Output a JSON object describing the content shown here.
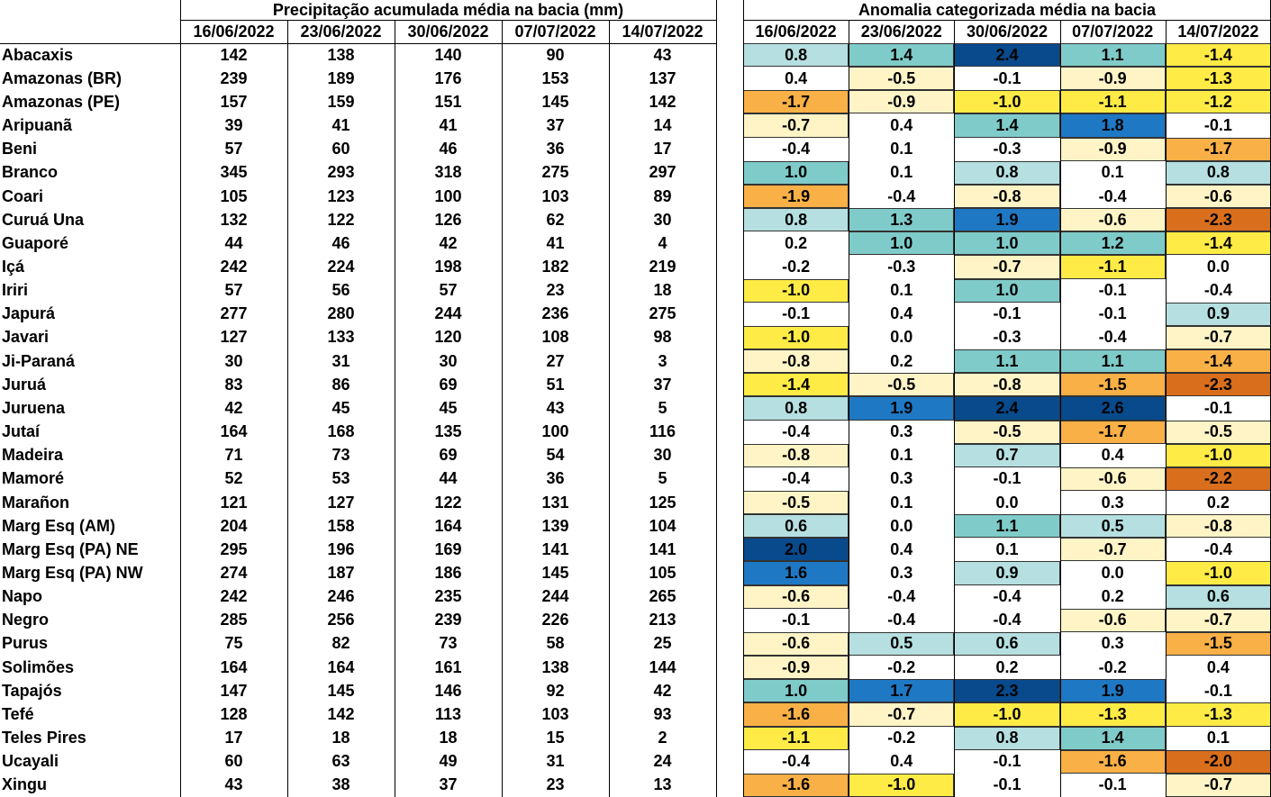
{
  "left_table": {
    "title": "Precipitação acumulada média na bacia (mm)",
    "dates": [
      "16/06/2022",
      "23/06/2022",
      "30/06/2022",
      "07/07/2022",
      "14/07/2022"
    ]
  },
  "right_table": {
    "title": "Anomalia categorizada média na bacia",
    "dates": [
      "16/06/2022",
      "23/06/2022",
      "30/06/2022",
      "07/07/2022",
      "14/07/2022"
    ]
  },
  "rows": [
    {
      "name": "Abacaxis",
      "precipitation": [
        142,
        138,
        140,
        90,
        43
      ],
      "anomaly": [
        "0.8",
        "1.4",
        "2.4",
        "1.1",
        "-1.4"
      ],
      "colors": [
        "#b5dfe0",
        "#7fcbc9",
        "#084a8c",
        "#7fcbc9",
        "#ffeb45"
      ]
    },
    {
      "name": "Amazonas (BR)",
      "precipitation": [
        239,
        189,
        176,
        153,
        137
      ],
      "anomaly": [
        "0.4",
        "-0.5",
        "-0.1",
        "-0.9",
        "-1.3"
      ],
      "colors": [
        "#ffffff",
        "#fff4c6",
        "#ffffff",
        "#fff4c6",
        "#ffeb45"
      ]
    },
    {
      "name": "Amazonas (PE)",
      "precipitation": [
        157,
        159,
        151,
        145,
        142
      ],
      "anomaly": [
        "-1.7",
        "-0.9",
        "-1.0",
        "-1.1",
        "-1.2"
      ],
      "colors": [
        "#f9b046",
        "#fff4c6",
        "#ffeb45",
        "#ffeb45",
        "#ffeb45"
      ]
    },
    {
      "name": "Aripuanã",
      "precipitation": [
        39,
        41,
        41,
        37,
        14
      ],
      "anomaly": [
        "-0.7",
        "0.4",
        "1.4",
        "1.8",
        "-0.1"
      ],
      "colors": [
        "#fff4c6",
        "#ffffff",
        "#7fcbc9",
        "#1f78c4",
        "#ffffff"
      ]
    },
    {
      "name": "Beni",
      "precipitation": [
        57,
        60,
        46,
        36,
        17
      ],
      "anomaly": [
        "-0.4",
        "0.1",
        "-0.3",
        "-0.9",
        "-1.7"
      ],
      "colors": [
        "#ffffff",
        "#ffffff",
        "#ffffff",
        "#fff4c6",
        "#f9b046"
      ]
    },
    {
      "name": "Branco",
      "precipitation": [
        345,
        293,
        318,
        275,
        297
      ],
      "anomaly": [
        "1.0",
        "0.1",
        "0.8",
        "0.1",
        "0.8"
      ],
      "colors": [
        "#7fcbc9",
        "#ffffff",
        "#b5dfe0",
        "#ffffff",
        "#b5dfe0"
      ]
    },
    {
      "name": "Coari",
      "precipitation": [
        105,
        123,
        100,
        103,
        89
      ],
      "anomaly": [
        "-1.9",
        "-0.4",
        "-0.8",
        "-0.4",
        "-0.6"
      ],
      "colors": [
        "#f9b046",
        "#ffffff",
        "#fff4c6",
        "#ffffff",
        "#fff4c6"
      ]
    },
    {
      "name": "Curuá Una",
      "precipitation": [
        132,
        122,
        126,
        62,
        30
      ],
      "anomaly": [
        "0.8",
        "1.3",
        "1.9",
        "-0.6",
        "-2.3"
      ],
      "colors": [
        "#b5dfe0",
        "#7fcbc9",
        "#1f78c4",
        "#fff4c6",
        "#d96e1c"
      ]
    },
    {
      "name": "Guaporé",
      "precipitation": [
        44,
        46,
        42,
        41,
        4
      ],
      "anomaly": [
        "0.2",
        "1.0",
        "1.0",
        "1.2",
        "-1.4"
      ],
      "colors": [
        "#ffffff",
        "#7fcbc9",
        "#7fcbc9",
        "#7fcbc9",
        "#ffeb45"
      ]
    },
    {
      "name": "Içá",
      "precipitation": [
        242,
        224,
        198,
        182,
        219
      ],
      "anomaly": [
        "-0.2",
        "-0.3",
        "-0.7",
        "-1.1",
        "0.0"
      ],
      "colors": [
        "#ffffff",
        "#ffffff",
        "#fff4c6",
        "#ffeb45",
        "#ffffff"
      ]
    },
    {
      "name": "Iriri",
      "precipitation": [
        57,
        56,
        57,
        23,
        18
      ],
      "anomaly": [
        "-1.0",
        "0.1",
        "1.0",
        "-0.1",
        "-0.4"
      ],
      "colors": [
        "#ffeb45",
        "#ffffff",
        "#7fcbc9",
        "#ffffff",
        "#ffffff"
      ]
    },
    {
      "name": "Japurá",
      "precipitation": [
        277,
        280,
        244,
        236,
        275
      ],
      "anomaly": [
        "-0.1",
        "0.4",
        "-0.1",
        "-0.1",
        "0.9"
      ],
      "colors": [
        "#ffffff",
        "#ffffff",
        "#ffffff",
        "#ffffff",
        "#b5dfe0"
      ]
    },
    {
      "name": "Javari",
      "precipitation": [
        127,
        133,
        120,
        108,
        98
      ],
      "anomaly": [
        "-1.0",
        "0.0",
        "-0.3",
        "-0.4",
        "-0.7"
      ],
      "colors": [
        "#ffeb45",
        "#ffffff",
        "#ffffff",
        "#ffffff",
        "#fff4c6"
      ]
    },
    {
      "name": "Ji-Paraná",
      "precipitation": [
        30,
        31,
        30,
        27,
        3
      ],
      "anomaly": [
        "-0.8",
        "0.2",
        "1.1",
        "1.1",
        "-1.4"
      ],
      "colors": [
        "#fff4c6",
        "#ffffff",
        "#7fcbc9",
        "#7fcbc9",
        "#f9b046"
      ]
    },
    {
      "name": "Juruá",
      "precipitation": [
        83,
        86,
        69,
        51,
        37
      ],
      "anomaly": [
        "-1.4",
        "-0.5",
        "-0.8",
        "-1.5",
        "-2.3"
      ],
      "colors": [
        "#ffeb45",
        "#fff4c6",
        "#fff4c6",
        "#f9b046",
        "#d96e1c"
      ]
    },
    {
      "name": "Juruena",
      "precipitation": [
        42,
        45,
        45,
        43,
        5
      ],
      "anomaly": [
        "0.8",
        "1.9",
        "2.4",
        "2.6",
        "-0.1"
      ],
      "colors": [
        "#b5dfe0",
        "#1f78c4",
        "#084a8c",
        "#084a8c",
        "#ffffff"
      ]
    },
    {
      "name": "Jutaí",
      "precipitation": [
        164,
        168,
        135,
        100,
        116
      ],
      "anomaly": [
        "-0.4",
        "0.3",
        "-0.5",
        "-1.7",
        "-0.5"
      ],
      "colors": [
        "#ffffff",
        "#ffffff",
        "#fff4c6",
        "#f9b046",
        "#fff4c6"
      ]
    },
    {
      "name": "Madeira",
      "precipitation": [
        71,
        73,
        69,
        54,
        30
      ],
      "anomaly": [
        "-0.8",
        "0.1",
        "0.7",
        "0.4",
        "-1.0"
      ],
      "colors": [
        "#fff4c6",
        "#ffffff",
        "#b5dfe0",
        "#ffffff",
        "#ffeb45"
      ]
    },
    {
      "name": "Mamoré",
      "precipitation": [
        52,
        53,
        44,
        36,
        5
      ],
      "anomaly": [
        "-0.4",
        "0.3",
        "-0.1",
        "-0.6",
        "-2.2"
      ],
      "colors": [
        "#ffffff",
        "#ffffff",
        "#ffffff",
        "#fff4c6",
        "#d96e1c"
      ]
    },
    {
      "name": "Marañon",
      "precipitation": [
        121,
        127,
        122,
        131,
        125
      ],
      "anomaly": [
        "-0.5",
        "0.1",
        "0.0",
        "0.3",
        "0.2"
      ],
      "colors": [
        "#fff4c6",
        "#ffffff",
        "#ffffff",
        "#ffffff",
        "#ffffff"
      ]
    },
    {
      "name": "Marg Esq (AM)",
      "precipitation": [
        204,
        158,
        164,
        139,
        104
      ],
      "anomaly": [
        "0.6",
        "0.0",
        "1.1",
        "0.5",
        "-0.8"
      ],
      "colors": [
        "#b5dfe0",
        "#ffffff",
        "#7fcbc9",
        "#b5dfe0",
        "#fff4c6"
      ]
    },
    {
      "name": "Marg Esq (PA) NE",
      "precipitation": [
        295,
        196,
        169,
        141,
        141
      ],
      "anomaly": [
        "2.0",
        "0.4",
        "0.1",
        "-0.7",
        "-0.4"
      ],
      "colors": [
        "#084a8c",
        "#ffffff",
        "#ffffff",
        "#fff4c6",
        "#ffffff"
      ]
    },
    {
      "name": "Marg Esq (PA) NW",
      "precipitation": [
        274,
        187,
        186,
        145,
        105
      ],
      "anomaly": [
        "1.6",
        "0.3",
        "0.9",
        "0.0",
        "-1.0"
      ],
      "colors": [
        "#1f78c4",
        "#ffffff",
        "#b5dfe0",
        "#ffffff",
        "#ffeb45"
      ]
    },
    {
      "name": "Napo",
      "precipitation": [
        242,
        246,
        235,
        244,
        265
      ],
      "anomaly": [
        "-0.6",
        "-0.4",
        "-0.4",
        "0.2",
        "0.6"
      ],
      "colors": [
        "#fff4c6",
        "#ffffff",
        "#ffffff",
        "#ffffff",
        "#b5dfe0"
      ]
    },
    {
      "name": "Negro",
      "precipitation": [
        285,
        256,
        239,
        226,
        213
      ],
      "anomaly": [
        "-0.1",
        "-0.4",
        "-0.4",
        "-0.6",
        "-0.7"
      ],
      "colors": [
        "#ffffff",
        "#ffffff",
        "#ffffff",
        "#fff4c6",
        "#fff4c6"
      ]
    },
    {
      "name": "Purus",
      "precipitation": [
        75,
        82,
        73,
        58,
        25
      ],
      "anomaly": [
        "-0.6",
        "0.5",
        "0.6",
        "0.3",
        "-1.5"
      ],
      "colors": [
        "#fff4c6",
        "#b5dfe0",
        "#b5dfe0",
        "#ffffff",
        "#f9b046"
      ]
    },
    {
      "name": "Solimões",
      "precipitation": [
        164,
        164,
        161,
        138,
        144
      ],
      "anomaly": [
        "-0.9",
        "-0.2",
        "0.2",
        "-0.2",
        "0.4"
      ],
      "colors": [
        "#fff4c6",
        "#ffffff",
        "#ffffff",
        "#ffffff",
        "#ffffff"
      ]
    },
    {
      "name": "Tapajós",
      "precipitation": [
        147,
        145,
        146,
        92,
        42
      ],
      "anomaly": [
        "1.0",
        "1.7",
        "2.3",
        "1.9",
        "-0.1"
      ],
      "colors": [
        "#7fcbc9",
        "#1f78c4",
        "#084a8c",
        "#1f78c4",
        "#ffffff"
      ]
    },
    {
      "name": "Tefé",
      "precipitation": [
        128,
        142,
        113,
        103,
        93
      ],
      "anomaly": [
        "-1.6",
        "-0.7",
        "-1.0",
        "-1.3",
        "-1.3"
      ],
      "colors": [
        "#f9b046",
        "#fff4c6",
        "#ffeb45",
        "#ffeb45",
        "#ffeb45"
      ]
    },
    {
      "name": "Teles Pires",
      "precipitation": [
        17,
        18,
        18,
        15,
        2
      ],
      "anomaly": [
        "-1.1",
        "-0.2",
        "0.8",
        "1.4",
        "0.1"
      ],
      "colors": [
        "#ffeb45",
        "#ffffff",
        "#b5dfe0",
        "#7fcbc9",
        "#ffffff"
      ]
    },
    {
      "name": "Ucayali",
      "precipitation": [
        60,
        63,
        49,
        31,
        24
      ],
      "anomaly": [
        "-0.4",
        "0.4",
        "-0.1",
        "-1.6",
        "-2.0"
      ],
      "colors": [
        "#ffffff",
        "#ffffff",
        "#ffffff",
        "#f9b046",
        "#d96e1c"
      ]
    },
    {
      "name": "Xingu",
      "precipitation": [
        43,
        38,
        37,
        23,
        13
      ],
      "anomaly": [
        "-1.6",
        "-1.0",
        "-0.1",
        "-0.1",
        "-0.7"
      ],
      "colors": [
        "#f9b046",
        "#ffeb45",
        "#ffffff",
        "#ffffff",
        "#fff4c6"
      ]
    }
  ]
}
